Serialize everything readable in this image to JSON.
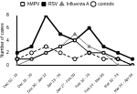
{
  "chart_data": {
    "type": "line",
    "y_label": "Number of cases",
    "categories": [
      "Dec 02 - 15",
      "Dec 16 - 29",
      "Dec 30 - Jan 12",
      "Jan 13 - 26",
      "Jan 27 - Feb 09",
      "Feb 10 - 23",
      "Feb 24 - Mar 09",
      "Mar 10 - 23",
      "Mar 24 - Apr 06"
    ],
    "series": [
      {
        "name": "hMPV",
        "color": "#000000",
        "marker": "open_square",
        "line_style": "solid",
        "values": [
          1,
          1,
          2,
          3,
          4,
          2,
          2,
          1,
          0
        ]
      },
      {
        "name": "RSV",
        "color": "#000000",
        "marker": "filled_square",
        "line_style": "solid",
        "values": [
          2,
          3,
          8,
          5,
          4,
          6,
          3,
          2,
          1
        ]
      },
      {
        "name": "Influenza A",
        "color": "#808080",
        "marker": "triangle",
        "line_style": "solid",
        "values": [
          0,
          1,
          2,
          3,
          5,
          3,
          2,
          0,
          0
        ]
      },
      {
        "name": "controls",
        "color": "#000000",
        "marker": "circle",
        "line_style": "dashed",
        "values": [
          1,
          2,
          3,
          2,
          1,
          2,
          1,
          1,
          0
        ]
      }
    ],
    "ylim": [
      0,
      8
    ],
    "yticks": [
      0,
      2,
      4,
      6,
      8
    ],
    "grid": false,
    "legend": "top"
  }
}
